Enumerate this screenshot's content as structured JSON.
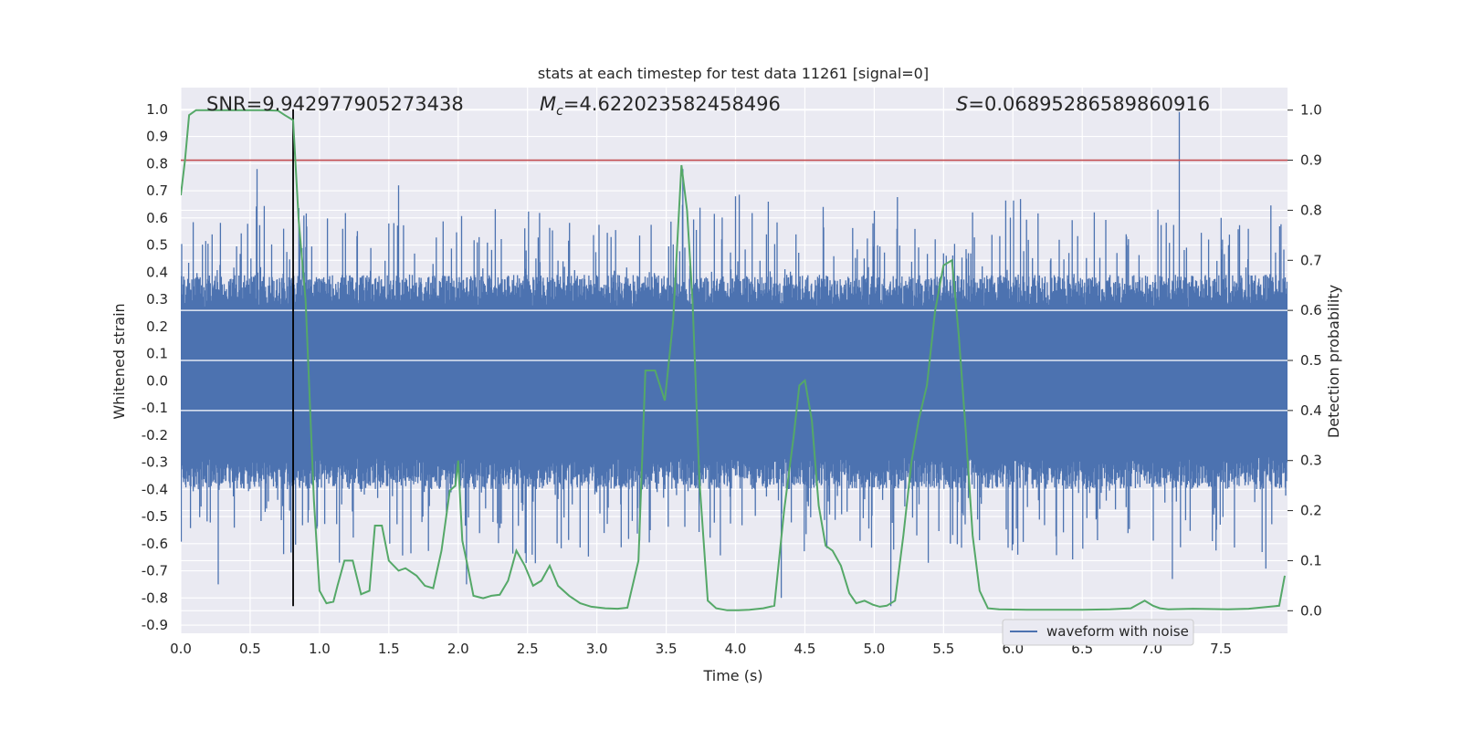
{
  "chart_data": {
    "type": "line",
    "title": "stats at each timestep for test data 11261 [signal=0]",
    "xlabel": "Time (s)",
    "ylabel": "Whitened strain",
    "y2label": "Detection probability",
    "xlim": [
      0.0,
      7.98
    ],
    "ylim": [
      -0.93,
      1.08
    ],
    "y2lim": [
      -0.045,
      1.045
    ],
    "x_ticks": [
      "0.0",
      "0.5",
      "1.0",
      "1.5",
      "2.0",
      "2.5",
      "3.0",
      "3.5",
      "4.0",
      "4.5",
      "5.0",
      "5.5",
      "6.0",
      "6.5",
      "7.0",
      "7.5"
    ],
    "y_ticks": [
      "-0.9",
      "-0.8",
      "-0.7",
      "-0.6",
      "-0.5",
      "-0.4",
      "-0.3",
      "-0.2",
      "-0.1",
      "0.0",
      "0.1",
      "0.2",
      "0.3",
      "0.4",
      "0.5",
      "0.6",
      "0.7",
      "0.8",
      "0.9",
      "1.0"
    ],
    "y2_ticks": [
      "0.0",
      "0.1",
      "0.2",
      "0.3",
      "0.4",
      "0.5",
      "0.6",
      "0.7",
      "0.8",
      "0.9",
      "1.0"
    ],
    "grid": true,
    "legend": {
      "position": "bottom-right"
    },
    "annotations": {
      "snr_label": "SNR",
      "snr_value": "9.942977905273438",
      "mc_symbol": "M",
      "mc_sub": "c",
      "mc_value": "4.622023582458496",
      "s_symbol": "S",
      "s_value": "0.06895286589860916"
    },
    "marker_time": 0.81,
    "threshold_probability": 0.9,
    "series": [
      {
        "name": "waveform with noise",
        "axis": "left",
        "color": "#4c72b0",
        "description_note": "dense noise waveform",
        "peaks": [
          {
            "x": 0.55,
            "y": 0.78
          },
          {
            "x": 0.27,
            "y": -0.75
          },
          {
            "x": 3.62,
            "y": 0.78
          },
          {
            "x": 5.12,
            "y": -0.83
          },
          {
            "x": 7.2,
            "y": 0.99
          },
          {
            "x": 7.15,
            "y": -0.73
          },
          {
            "x": 1.57,
            "y": 0.72
          },
          {
            "x": 2.06,
            "y": -0.75
          },
          {
            "x": 4.33,
            "y": -0.8
          },
          {
            "x": 7.97,
            "y": 0.0
          }
        ]
      },
      {
        "axis": "right",
        "color": "#55a868",
        "x": [
          0.0,
          0.03,
          0.06,
          0.11,
          0.2,
          0.4,
          0.6,
          0.7,
          0.75,
          0.81,
          0.85,
          0.9,
          0.96,
          1.0,
          1.05,
          1.1,
          1.13,
          1.18,
          1.24,
          1.3,
          1.36,
          1.4,
          1.45,
          1.5,
          1.57,
          1.62,
          1.7,
          1.76,
          1.82,
          1.88,
          1.94,
          1.98,
          2.0,
          2.03,
          2.06,
          2.11,
          2.18,
          2.24,
          2.3,
          2.36,
          2.42,
          2.48,
          2.54,
          2.6,
          2.66,
          2.72,
          2.8,
          2.88,
          2.96,
          3.06,
          3.15,
          3.22,
          3.3,
          3.35,
          3.42,
          3.49,
          3.55,
          3.61,
          3.65,
          3.69,
          3.74,
          3.8,
          3.86,
          3.94,
          4.02,
          4.1,
          4.2,
          4.28,
          4.35,
          4.42,
          4.46,
          4.5,
          4.55,
          4.6,
          4.65,
          4.7,
          4.76,
          4.82,
          4.87,
          4.93,
          4.99,
          5.04,
          5.09,
          5.15,
          5.21,
          5.27,
          5.32,
          5.38,
          5.44,
          5.5,
          5.56,
          5.61,
          5.66,
          5.71,
          5.76,
          5.82,
          5.9,
          6.1,
          6.3,
          6.5,
          6.7,
          6.85,
          6.95,
          7.01,
          7.06,
          7.12,
          7.3,
          7.55,
          7.7,
          7.92,
          7.96
        ],
        "values": [
          0.83,
          0.9,
          0.99,
          1.0,
          1.0,
          1.0,
          1.0,
          0.999,
          0.99,
          0.98,
          0.78,
          0.62,
          0.22,
          0.04,
          0.015,
          0.018,
          0.05,
          0.1,
          0.1,
          0.033,
          0.04,
          0.17,
          0.17,
          0.1,
          0.08,
          0.085,
          0.07,
          0.05,
          0.045,
          0.12,
          0.24,
          0.25,
          0.3,
          0.14,
          0.1,
          0.03,
          0.025,
          0.03,
          0.032,
          0.06,
          0.12,
          0.09,
          0.05,
          0.06,
          0.09,
          0.05,
          0.03,
          0.015,
          0.008,
          0.005,
          0.004,
          0.006,
          0.1,
          0.48,
          0.48,
          0.42,
          0.58,
          0.89,
          0.8,
          0.62,
          0.26,
          0.02,
          0.005,
          0.001,
          0.001,
          0.002,
          0.005,
          0.01,
          0.2,
          0.35,
          0.45,
          0.46,
          0.38,
          0.21,
          0.13,
          0.12,
          0.09,
          0.035,
          0.015,
          0.02,
          0.012,
          0.008,
          0.01,
          0.02,
          0.15,
          0.3,
          0.38,
          0.45,
          0.6,
          0.69,
          0.7,
          0.55,
          0.36,
          0.15,
          0.04,
          0.005,
          0.003,
          0.002,
          0.002,
          0.002,
          0.003,
          0.005,
          0.02,
          0.01,
          0.005,
          0.003,
          0.004,
          0.003,
          0.004,
          0.01,
          0.07
        ]
      }
    ]
  }
}
